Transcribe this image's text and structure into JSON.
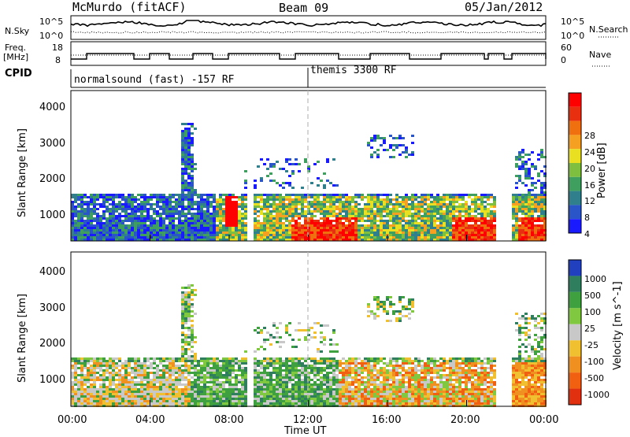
{
  "header": {
    "title": "McMurdo (fitACF)",
    "beam": "Beam 09",
    "date": "05/Jan/2012"
  },
  "noise_panel": {
    "left_label": "N.Sky",
    "right_label": "N.Search",
    "left_ticks": [
      "10^5",
      "10^0"
    ],
    "right_ticks": [
      "10^5",
      "10^0"
    ]
  },
  "freq_panel": {
    "left_label_1": "Freq.",
    "left_label_2": "[MHz]",
    "right_label": "Nave",
    "left_ticks": [
      "18",
      "8"
    ],
    "right_ticks": [
      "60",
      "0"
    ]
  },
  "cpid": {
    "label": "CPID",
    "program_1": "normalsound (fast) -157 RF",
    "program_2": "themis 3300 RF"
  },
  "colors": {
    "power": [
      "#1a1aff",
      "#2a55c8",
      "#2f7f8c",
      "#3f9f5f",
      "#7fbf3f",
      "#e8e020",
      "#f5a020",
      "#f07010",
      "#e83010",
      "#ff0000"
    ],
    "velocity": [
      "#2040c0",
      "#2f7f5f",
      "#3fa03f",
      "#80c840",
      "#c8c8c8",
      "#f0c030",
      "#f09020",
      "#f06010",
      "#e03010"
    ]
  },
  "chart_data": [
    {
      "type": "heatmap",
      "name": "power",
      "ylabel": "Slant Range [km]",
      "yticks": [
        "4000",
        "3000",
        "2000",
        "1000"
      ],
      "ylim": [
        180,
        4500
      ],
      "colorbar_label": "Power [dB]",
      "colorbar_ticks": [
        "28",
        "24",
        "20",
        "16",
        "12",
        "8",
        "4"
      ]
    },
    {
      "type": "heatmap",
      "name": "velocity",
      "ylabel": "Slant Range [km]",
      "yticks": [
        "4000",
        "3000",
        "2000",
        "1000"
      ],
      "ylim": [
        180,
        4500
      ],
      "colorbar_label": "Velocity [m s^-1]",
      "colorbar_ticks": [
        "1000",
        "500",
        "100",
        "25",
        "-25",
        "-100",
        "-500",
        "-1000"
      ]
    }
  ],
  "x_axis": {
    "label": "Time UT",
    "ticks": [
      "00:00",
      "04:00",
      "08:00",
      "12:00",
      "16:00",
      "20:00",
      "00:00"
    ]
  }
}
